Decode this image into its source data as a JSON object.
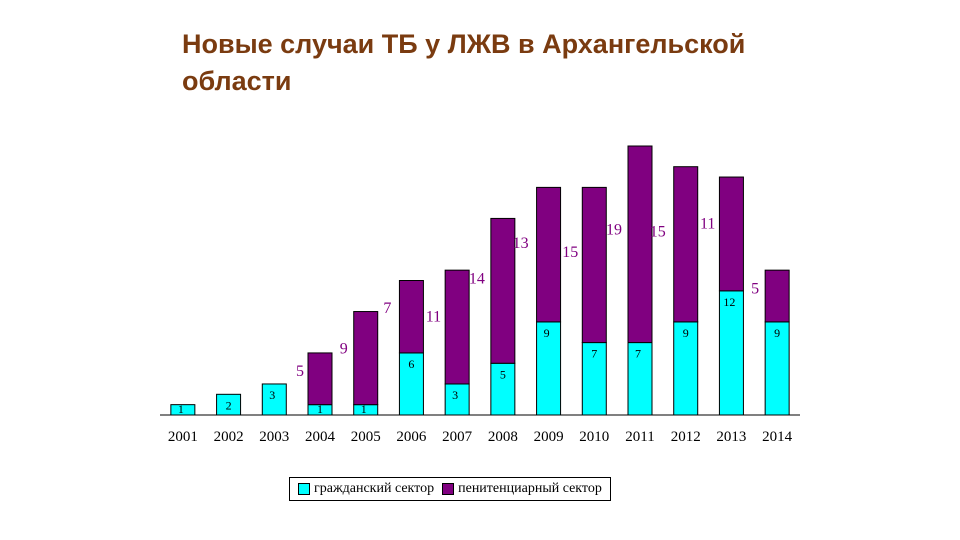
{
  "slide": {
    "title": "Новые случаи ТБ у ЛЖВ в Архангельской области"
  },
  "chart_data": {
    "type": "bar",
    "stacked": true,
    "title": "",
    "xlabel": "",
    "ylabel": "",
    "ylim": [
      0,
      26
    ],
    "grid": false,
    "legend_position": "bottom",
    "categories": [
      "2001",
      "2002",
      "2003",
      "2004",
      "2005",
      "2006",
      "2007",
      "2008",
      "2009",
      "2010",
      "2011",
      "2012",
      "2013",
      "2014"
    ],
    "series": [
      {
        "name": "гражданский сектор",
        "color": "#00ffff",
        "values": [
          1,
          2,
          3,
          1,
          1,
          6,
          3,
          5,
          9,
          7,
          7,
          9,
          12,
          9
        ]
      },
      {
        "name": "пенитенциарный сектор",
        "color": "#800080",
        "values": [
          0,
          0,
          0,
          5,
          9,
          7,
          11,
          14,
          13,
          15,
          19,
          15,
          11,
          5
        ]
      }
    ]
  }
}
